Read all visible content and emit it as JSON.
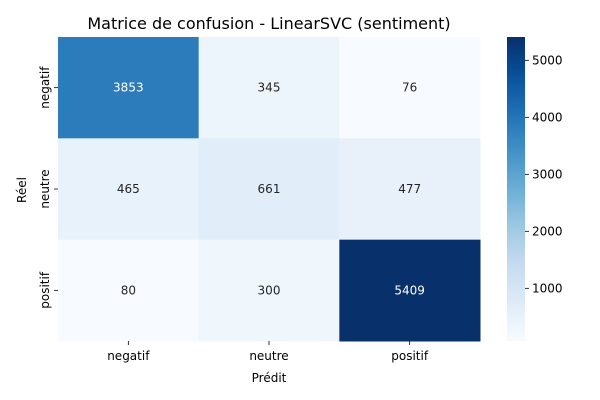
{
  "chart_data": {
    "type": "heatmap",
    "title": "Matrice de confusion - LinearSVC (sentiment)",
    "xlabel": "Prédit",
    "ylabel": "Réel",
    "x_categories": [
      "negatif",
      "neutre",
      "positif"
    ],
    "y_categories": [
      "negatif",
      "neutre",
      "positif"
    ],
    "matrix": [
      [
        3853,
        345,
        76
      ],
      [
        465,
        661,
        477
      ],
      [
        80,
        300,
        5409
      ]
    ],
    "colorbar": {
      "min": 76,
      "max": 5409,
      "ticks": [
        1000,
        2000,
        3000,
        4000,
        5000
      ],
      "colormap": "Blues"
    }
  }
}
